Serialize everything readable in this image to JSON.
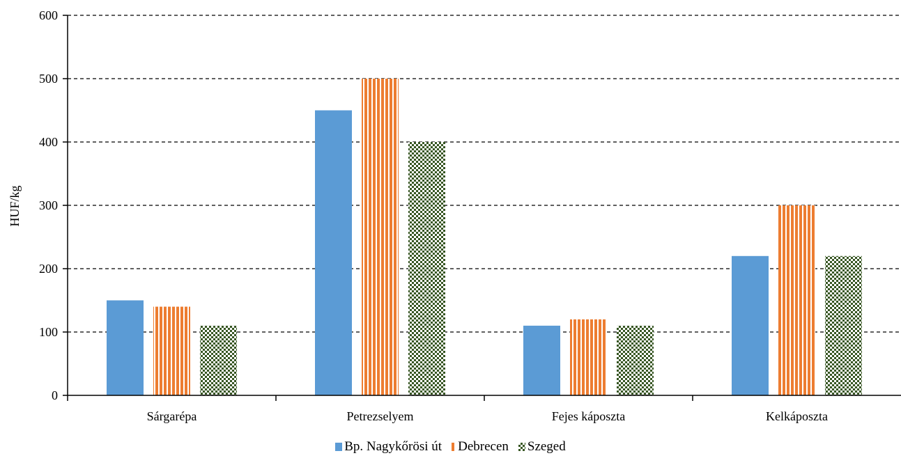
{
  "chart_data": {
    "type": "bar",
    "title": "",
    "xlabel": "",
    "ylabel": "HUF/kg",
    "ylim": [
      0,
      600
    ],
    "yticks": [
      0,
      100,
      200,
      300,
      400,
      500,
      600
    ],
    "grid": true,
    "legend_position": "bottom",
    "categories": [
      "Sárgarépa",
      "Petrezselyem",
      "Fejes káposzta",
      "Kelkáposzta"
    ],
    "series": [
      {
        "name": "Bp. Nagykőrösi út",
        "values": [
          150,
          450,
          110,
          220
        ],
        "color": "#5b9bd5",
        "pattern": "solid"
      },
      {
        "name": "Debrecen",
        "values": [
          140,
          500,
          120,
          300
        ],
        "color": "#ed7d31",
        "pattern": "vertical-stripes"
      },
      {
        "name": "Szeged",
        "values": [
          110,
          400,
          110,
          220
        ],
        "color": "#375623",
        "pattern": "checkerboard"
      }
    ]
  }
}
